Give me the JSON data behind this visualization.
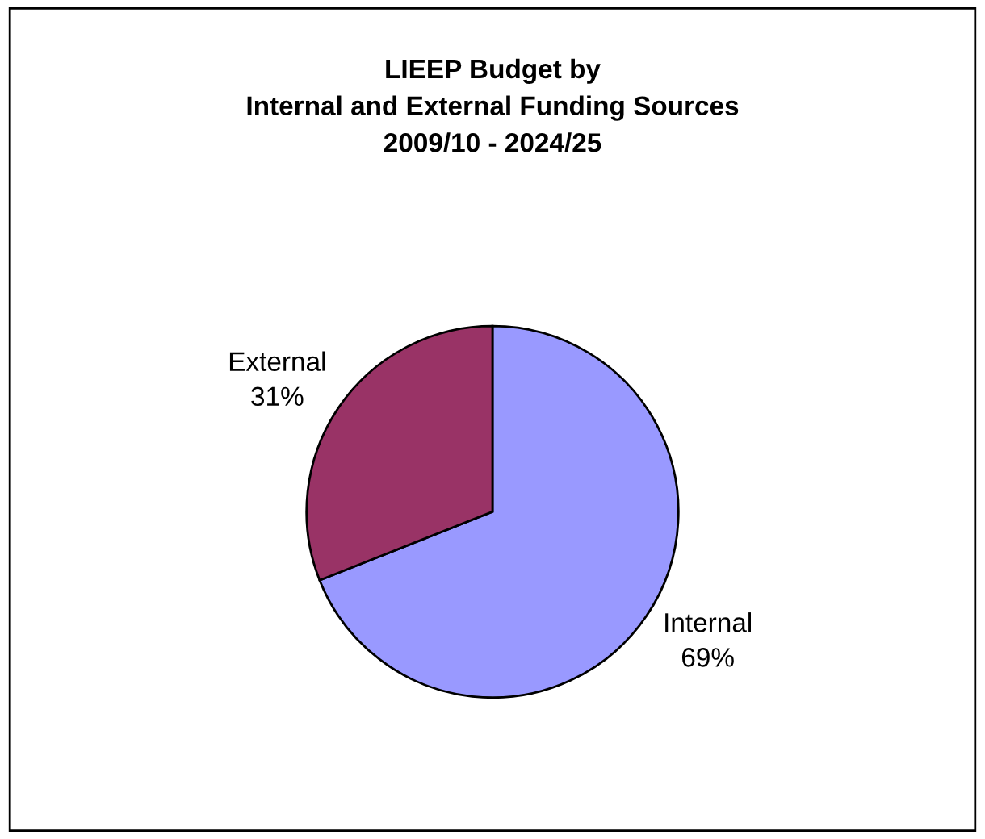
{
  "chart_data": {
    "type": "pie",
    "title": "LIEEP Budget by\nInternal and External Funding Sources\n2009/10 - 2024/25",
    "categories": [
      "Internal",
      "External"
    ],
    "values": [
      69,
      31
    ],
    "value_labels": [
      "69%",
      "31%"
    ],
    "colors": [
      "#9999ff",
      "#993366"
    ],
    "legend": false
  }
}
